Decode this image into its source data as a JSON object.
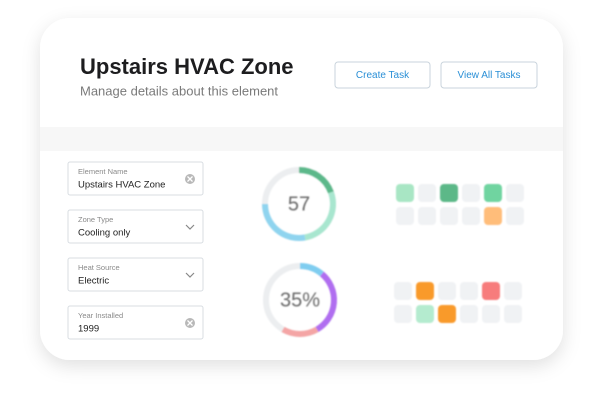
{
  "header": {
    "title": "Upstairs HVAC Zone",
    "subtitle": "Manage details about this element"
  },
  "buttons": [
    "Create Task",
    "View All Tasks"
  ],
  "fields": [
    {
      "label": "Element Name",
      "value": "Upstairs HVAC Zone"
    },
    {
      "label": "Zone Type",
      "value": "Cooling only"
    },
    {
      "label": "Heat Source",
      "value": "Electric"
    },
    {
      "label": "Year Installed",
      "value": "1999"
    }
  ],
  "gauges": [
    "57",
    "35%"
  ]
}
